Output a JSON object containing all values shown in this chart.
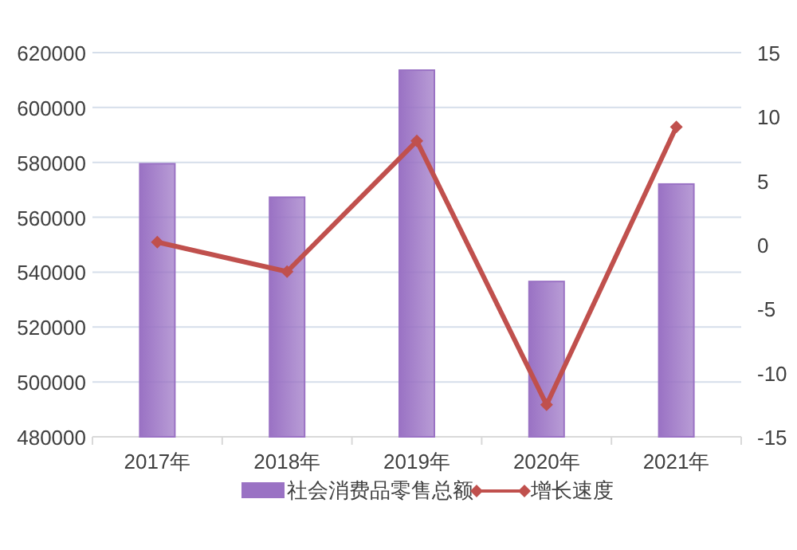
{
  "chart_data": {
    "type": "bar",
    "categories": [
      "2017年",
      "2018年",
      "2019年",
      "2020年",
      "2021年"
    ],
    "series": [
      {
        "name": "社会消费品零售总额",
        "color": "#9a72c4",
        "values": [
          579500,
          567300,
          613600,
          536600,
          572100
        ]
      },
      {
        "name": "增长速度",
        "type": "line",
        "axis": "y2",
        "color": "#c0504d",
        "values": [
          0.2,
          -2.1,
          8.1,
          -12.5,
          9.2
        ]
      }
    ],
    "ylim": [
      480000,
      620000
    ],
    "yticks": [
      480000,
      500000,
      520000,
      540000,
      560000,
      580000,
      600000,
      620000
    ],
    "y2lim": [
      -15,
      15
    ],
    "y2ticks": [
      -15,
      -10,
      -5,
      0,
      5,
      10,
      15
    ],
    "grid": "y",
    "legend": "bottom",
    "marker": "diamond"
  }
}
